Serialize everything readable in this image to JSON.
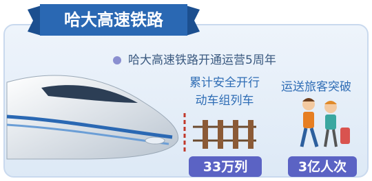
{
  "header": {
    "title": "哈大高速铁路"
  },
  "bullet": "哈大高速铁路开通运营5周年",
  "stats": [
    {
      "label_lines": [
        "累计安全开行",
        "动车组列车"
      ],
      "value": "33万列"
    },
    {
      "label_lines": [
        "运送旅客突破"
      ],
      "value": "3亿人次"
    }
  ]
}
